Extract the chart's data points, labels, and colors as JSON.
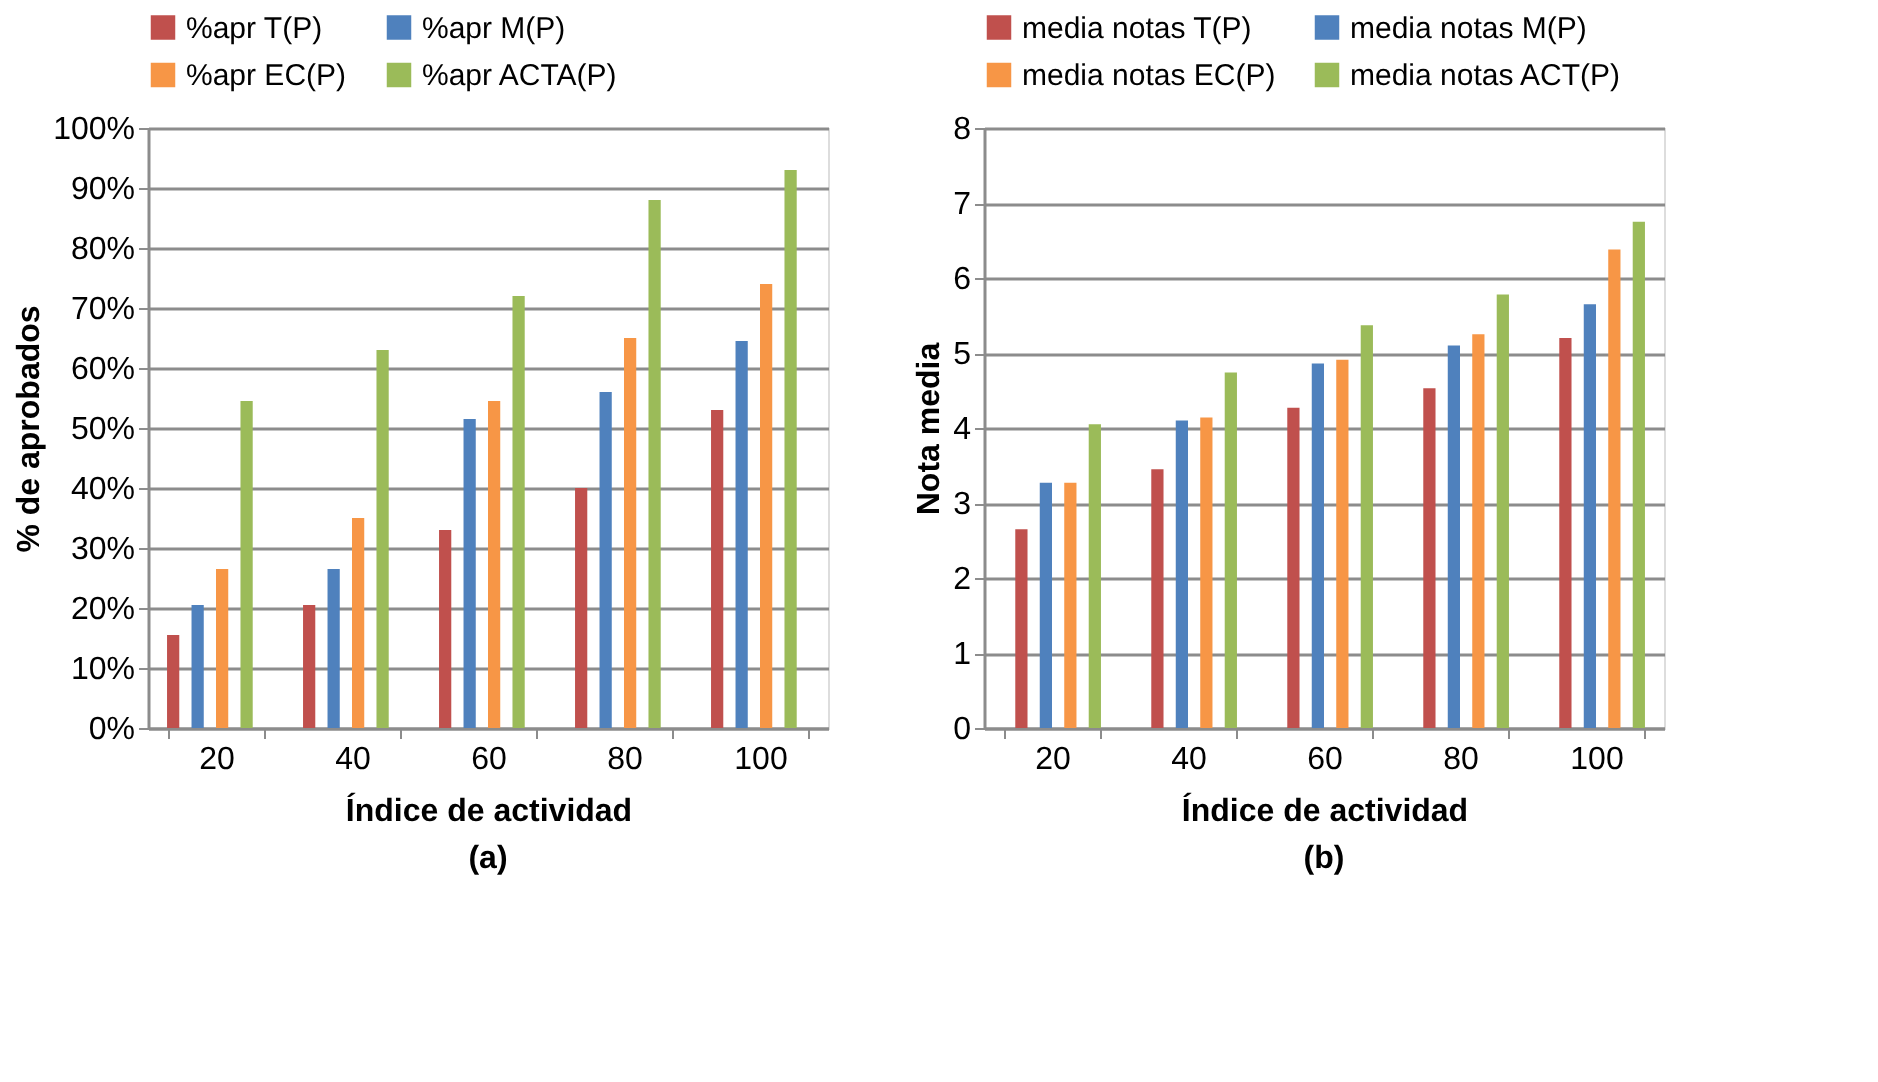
{
  "chart_data": [
    {
      "type": "bar",
      "xlabel": "Índice de actividad",
      "ylabel": "% de aprobados",
      "categories": [
        "20",
        "40",
        "60",
        "80",
        "100"
      ],
      "series": [
        {
          "name": "%apr T(P)",
          "color": "#c0504d",
          "values": [
            15.5,
            20.5,
            33,
            40,
            53
          ]
        },
        {
          "name": "%apr M(P)",
          "color": "#4f81bd",
          "values": [
            20.5,
            26.5,
            51.5,
            56,
            64.5
          ]
        },
        {
          "name": "%apr EC(P)",
          "color": "#f79646",
          "values": [
            26.5,
            35,
            54.5,
            65,
            74
          ]
        },
        {
          "name": "%apr ACTA(P)",
          "color": "#9bbb59",
          "values": [
            54.5,
            63,
            72,
            88,
            93
          ]
        }
      ],
      "ylim": [
        0,
        100
      ],
      "yticks": [
        {
          "value": 0,
          "label": "0%"
        },
        {
          "value": 10,
          "label": "10%"
        },
        {
          "value": 20,
          "label": "20%"
        },
        {
          "value": 30,
          "label": "30%"
        },
        {
          "value": 40,
          "label": "40%"
        },
        {
          "value": 50,
          "label": "50%"
        },
        {
          "value": 60,
          "label": "60%"
        },
        {
          "value": 70,
          "label": "70%"
        },
        {
          "value": 80,
          "label": "80%"
        },
        {
          "value": 90,
          "label": "90%"
        },
        {
          "value": 100,
          "label": "100%"
        }
      ],
      "grid": "y",
      "legend": "top",
      "annotations": [
        "(a)"
      ]
    },
    {
      "type": "bar",
      "xlabel": "Índice de actividad",
      "ylabel": "Nota media",
      "categories": [
        "20",
        "40",
        "60",
        "80",
        "100"
      ],
      "series": [
        {
          "name": "media notas T(P)",
          "color": "#c0504d",
          "values": [
            2.65,
            3.45,
            4.27,
            4.53,
            5.2
          ]
        },
        {
          "name": "media notas M(P)",
          "color": "#4f81bd",
          "values": [
            3.27,
            4.1,
            4.86,
            5.1,
            5.65
          ]
        },
        {
          "name": "media notas EC(P)",
          "color": "#f79646",
          "values": [
            3.27,
            4.14,
            4.91,
            5.25,
            6.38
          ]
        },
        {
          "name": "media notas ACT(P)",
          "color": "#9bbb59",
          "values": [
            4.05,
            4.74,
            5.37,
            5.78,
            6.75
          ]
        }
      ],
      "ylim": [
        0,
        8
      ],
      "yticks": [
        0,
        1,
        2,
        3,
        4,
        5,
        6,
        7,
        8
      ],
      "grid": "y",
      "legend": "top",
      "annotations": [
        "(b)"
      ]
    }
  ]
}
